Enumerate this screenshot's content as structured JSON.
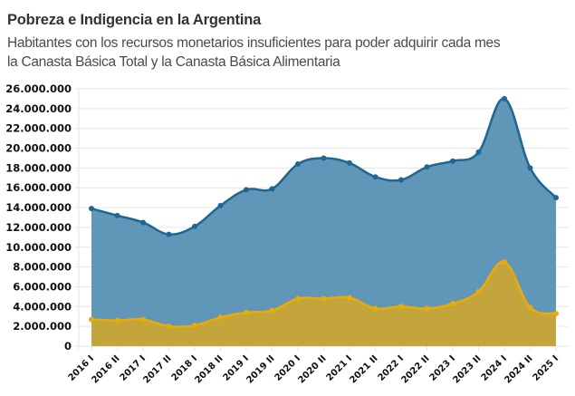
{
  "header": {
    "title": "Pobreza e Indigencia en la Argentina",
    "subtitle_line1": "Habitantes con los recursos monetarios insuficientes para poder adquirir cada mes",
    "subtitle_line2": "la Canasta Básica Total y la Canasta Básica Alimentaria"
  },
  "colors": {
    "pobreza_fill": "#6096b7",
    "pobreza_line": "#1f6691",
    "indigencia_fill": "#c3a53b",
    "indigencia_line": "#e9ab0a",
    "grid": "#e6e6e6"
  },
  "chart_data": {
    "type": "area",
    "title": "Pobreza e Indigencia en la Argentina",
    "subtitle": "Habitantes con los recursos monetarios insuficientes para poder adquirir cada mes la Canasta Básica Total y la Canasta Básica Alimentaria",
    "xlabel": "",
    "ylabel": "",
    "categories": [
      "2016 I",
      "2016 II",
      "2017 I",
      "2017 II",
      "2018 I",
      "2018 II",
      "2019 I",
      "2019 II",
      "2020 I",
      "2020 II",
      "2021 I",
      "2021 II",
      "2022 I",
      "2022 II",
      "2023 I",
      "2023 II",
      "2024 I",
      "2024 II",
      "2025 I"
    ],
    "series": [
      {
        "name": "Pobreza",
        "values": [
          13900000,
          13200000,
          12500000,
          11300000,
          12100000,
          14200000,
          15800000,
          15900000,
          18400000,
          19000000,
          18500000,
          17100000,
          16800000,
          18100000,
          18700000,
          19600000,
          25000000,
          18000000,
          15000000
        ]
      },
      {
        "name": "Indigencia",
        "values": [
          2700000,
          2600000,
          2700000,
          2000000,
          2100000,
          2900000,
          3400000,
          3600000,
          4800000,
          4800000,
          4900000,
          3800000,
          4000000,
          3800000,
          4300000,
          5500000,
          8500000,
          3900000,
          3300000
        ]
      }
    ],
    "ylim": [
      0,
      26000000
    ],
    "yticks": [
      0,
      2000000,
      4000000,
      6000000,
      8000000,
      10000000,
      12000000,
      14000000,
      16000000,
      18000000,
      20000000,
      22000000,
      24000000,
      26000000
    ],
    "ytick_labels": [
      "0",
      "2.000.000",
      "4.000.000",
      "6.000.000",
      "8.000.000",
      "10.000.000",
      "12.000.000",
      "14.000.000",
      "16.000.000",
      "18.000.000",
      "20.000.000",
      "22.000.000",
      "24.000.000",
      "26.000.000"
    ],
    "grid": true,
    "legend": "none",
    "curve": "smooth"
  }
}
